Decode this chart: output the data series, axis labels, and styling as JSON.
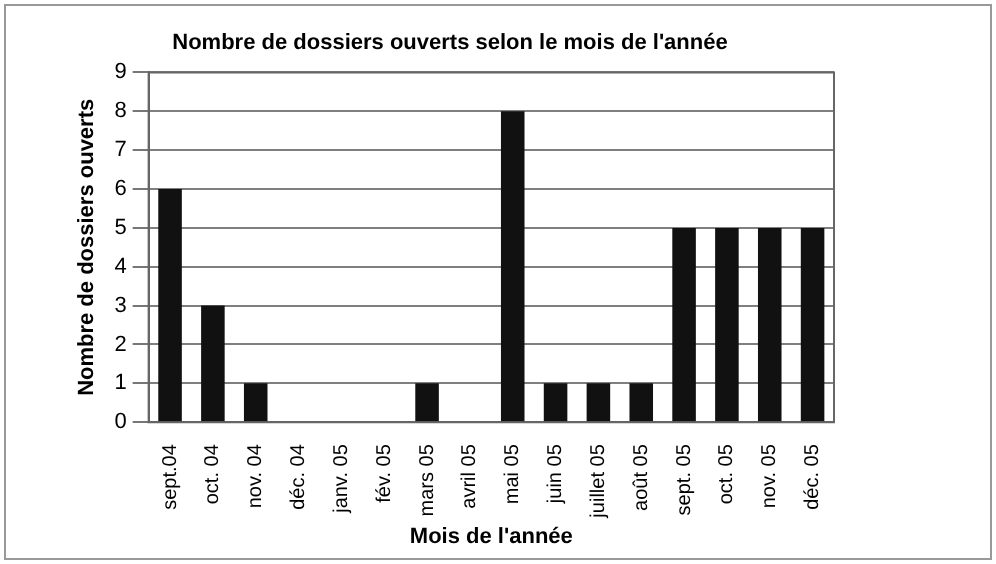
{
  "chart_data": {
    "type": "bar",
    "title": "Nombre de dossiers ouverts selon le mois de l'année",
    "xlabel": "Mois de l'année",
    "ylabel": "Nombre de dossiers ouverts",
    "categories": [
      "sept.04",
      "oct. 04",
      "nov. 04",
      "déc. 04",
      "janv. 05",
      "fév. 05",
      "mars 05",
      "avril 05",
      "mai 05",
      "juin 05",
      "juillet 05",
      "août 05",
      "sept. 05",
      "oct. 05",
      "nov. 05",
      "déc. 05"
    ],
    "values": [
      6,
      3,
      1,
      0,
      0,
      0,
      1,
      0,
      8,
      1,
      1,
      1,
      5,
      5,
      5,
      5
    ],
    "color": "#111111",
    "ylim": [
      0,
      9
    ],
    "yticks": [
      0,
      1,
      2,
      3,
      4,
      5,
      6,
      7,
      8,
      9
    ],
    "grid": "y",
    "legend": false
  }
}
